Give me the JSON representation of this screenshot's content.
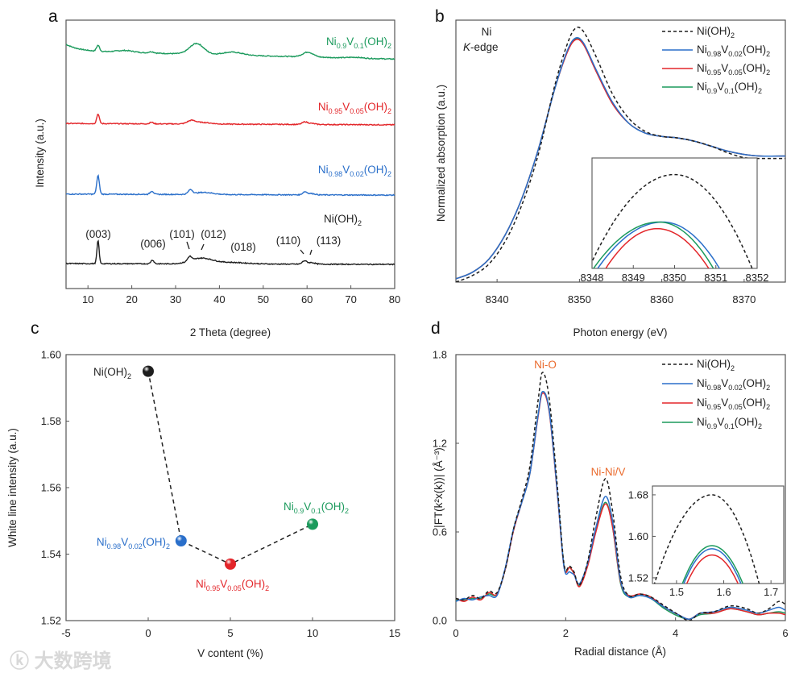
{
  "colors": {
    "black": "#1e1e1e",
    "blue": "#2a6fca",
    "red": "#e3262a",
    "green": "#1b9a5c",
    "annot": "#ea6a2c"
  },
  "watermark": "大数跨境",
  "chart_data": [
    {
      "panel": "a",
      "type": "line",
      "xlabel": "2 Theta (degree)",
      "ylabel": "Intensity (a.u.)",
      "xlim": [
        5,
        80
      ],
      "ylim": [
        0,
        100
      ],
      "xticks": [
        10,
        20,
        30,
        40,
        50,
        60,
        70,
        80
      ],
      "model": "baseline + gaussian peaks [center, height, width]",
      "series": [
        {
          "name": [
            "Ni",
            "0.9",
            "V",
            "0.1",
            "(OH)",
            "2"
          ],
          "color": "green",
          "baseline": [
            88.5,
            85.5
          ],
          "peaks": [
            [
              12.3,
              2.2,
              0.35
            ],
            [
              18.5,
              0.7,
              2
            ],
            [
              24.5,
              0.5,
              0.6
            ],
            [
              34.8,
              4.0,
              1.6
            ],
            [
              43,
              1.1,
              2.2
            ],
            [
              60.2,
              1.8,
              1.2
            ],
            [
              71,
              0.3,
              1.5
            ]
          ]
        },
        {
          "name": [
            "Ni",
            "0.95",
            "V",
            "0.05",
            "(OH)",
            "2"
          ],
          "color": "red",
          "baseline": [
            61.5,
            61.0
          ],
          "peaks": [
            [
              12.3,
              3.6,
              0.3
            ],
            [
              24.5,
              0.6,
              0.4
            ],
            [
              33.6,
              1.1,
              0.9
            ],
            [
              36,
              0.6,
              2
            ],
            [
              59.5,
              0.9,
              0.6
            ],
            [
              61,
              0.4,
              0.8
            ]
          ]
        },
        {
          "name": [
            "Ni",
            "0.98",
            "V",
            "0.02",
            "(OH)",
            "2"
          ],
          "color": "blue",
          "baseline": [
            35.2,
            34.8
          ],
          "peaks": [
            [
              12.3,
              6.9,
              0.3
            ],
            [
              24.6,
              1.2,
              0.4
            ],
            [
              33.4,
              1.6,
              0.5
            ],
            [
              36.5,
              0.8,
              2
            ],
            [
              59.5,
              1.1,
              0.5
            ],
            [
              61,
              0.5,
              0.8
            ]
          ]
        },
        {
          "name": [
            "Ni(OH)",
            "2"
          ],
          "color": "black",
          "baseline": [
            9.3,
            9.0
          ],
          "peaks": [
            [
              12.3,
              8.6,
              0.25
            ],
            [
              24.7,
              1.4,
              0.35
            ],
            [
              33.2,
              1.7,
              0.45
            ],
            [
              35.8,
              2.0,
              2.4
            ],
            [
              42,
              0.6,
              4
            ],
            [
              59.4,
              1.2,
              0.5
            ],
            [
              61,
              0.6,
              0.8
            ]
          ]
        }
      ],
      "annotations": [
        "(003)",
        "(006)",
        "(101)",
        "(012)",
        "(018)",
        "(110)",
        "(113)"
      ]
    },
    {
      "panel": "b",
      "type": "line",
      "xlabel": "Photon energy (eV)",
      "ylabel": "Normalized absorption (a.u.)",
      "xlim": [
        8335,
        8375
      ],
      "ylim": [
        0,
        1.6
      ],
      "xticks": [
        8340,
        8350,
        8360,
        8370
      ],
      "text": [
        "Ni",
        "K",
        "-edge"
      ],
      "x": [
        8335,
        8337,
        8339,
        8341,
        8343,
        8345,
        8347,
        8348.5,
        8349.5,
        8350.5,
        8352,
        8354,
        8356,
        8358,
        8360,
        8362,
        8364,
        8366,
        8368,
        8370,
        8372,
        8375
      ],
      "series": [
        {
          "name": [
            "Ni(OH)",
            "2"
          ],
          "color": "black",
          "dash": true,
          "values": [
            0.0,
            0.04,
            0.11,
            0.25,
            0.47,
            0.78,
            1.2,
            1.45,
            1.55,
            1.53,
            1.38,
            1.15,
            1.0,
            0.92,
            0.89,
            0.88,
            0.86,
            0.83,
            0.79,
            0.76,
            0.755,
            0.755
          ]
        },
        {
          "name": [
            "Ni",
            "0.98",
            "V",
            "0.02",
            "(OH)",
            "2"
          ],
          "color": "blue",
          "values": [
            0.02,
            0.06,
            0.14,
            0.29,
            0.51,
            0.81,
            1.18,
            1.41,
            1.49,
            1.46,
            1.3,
            1.1,
            0.97,
            0.91,
            0.89,
            0.88,
            0.86,
            0.83,
            0.8,
            0.78,
            0.77,
            0.77
          ]
        },
        {
          "name": [
            "Ni",
            "0.95",
            "V",
            "0.05",
            "(OH)",
            "2"
          ],
          "color": "red",
          "values": [
            0.02,
            0.06,
            0.14,
            0.29,
            0.51,
            0.81,
            1.18,
            1.4,
            1.48,
            1.45,
            1.29,
            1.09,
            0.97,
            0.91,
            0.89,
            0.88,
            0.86,
            0.83,
            0.8,
            0.78,
            0.77,
            0.77
          ]
        },
        {
          "name": [
            "Ni",
            "0.9",
            "V",
            "0.1",
            "(OH)",
            "2"
          ],
          "color": "green",
          "values": [
            0.02,
            0.06,
            0.14,
            0.29,
            0.51,
            0.81,
            1.18,
            1.405,
            1.485,
            1.455,
            1.295,
            1.095,
            0.97,
            0.91,
            0.89,
            0.88,
            0.86,
            0.83,
            0.8,
            0.78,
            0.77,
            0.77
          ]
        }
      ],
      "inset": {
        "xlim": [
          8348,
          8352
        ],
        "ylim": [
          0,
          1
        ],
        "xticks": [
          8348,
          8349,
          8350,
          8351,
          8352
        ],
        "model": "peak [x, y], x where curve meets inset bottom [left, right]",
        "series": [
          {
            "color": "black",
            "dash": true,
            "peak": [
              8350.0,
              0.85
            ],
            "ends": [
              8347.9,
              8351.9
            ]
          },
          {
            "color": "blue",
            "peak": [
              8349.72,
              0.42
            ],
            "ends": [
              8348.1,
              8351.12
            ]
          },
          {
            "color": "green",
            "peak": [
              8349.62,
              0.42
            ],
            "ends": [
              8348.0,
              8350.97
            ]
          },
          {
            "color": "red",
            "peak": [
              8349.58,
              0.36
            ],
            "ends": [
              8348.3,
              8350.86
            ]
          }
        ]
      }
    },
    {
      "panel": "c",
      "type": "scatter",
      "xlabel": "V content (%)",
      "ylabel": "White line intensity (a.u.)",
      "xlim": [
        -5,
        15
      ],
      "ylim": [
        1.52,
        1.6
      ],
      "xticks": [
        -5,
        0,
        5,
        10,
        15
      ],
      "yticks": [
        "1.52",
        "1.54",
        "1.56",
        "1.58",
        "1.60"
      ],
      "points": [
        {
          "x": 0,
          "y": 1.595,
          "color": "black",
          "name": [
            "Ni(OH)",
            "2"
          ]
        },
        {
          "x": 2,
          "y": 1.544,
          "color": "blue",
          "name": [
            "Ni",
            "0.98",
            "V",
            "0.02",
            "(OH)",
            "2"
          ]
        },
        {
          "x": 5,
          "y": 1.537,
          "color": "red",
          "name": [
            "Ni",
            "0.95",
            "V",
            "0.05",
            "(OH)",
            "2"
          ]
        },
        {
          "x": 10,
          "y": 1.549,
          "color": "green",
          "name": [
            "Ni",
            "0.9",
            "V",
            "0.1",
            "(OH)",
            "2"
          ]
        }
      ]
    },
    {
      "panel": "d",
      "type": "line",
      "xlabel": "Radial distance (Å)",
      "ylabel": "|FT(k²x(k))| (Å⁻³)",
      "xlim": [
        0,
        6
      ],
      "ylim": [
        0,
        1.8
      ],
      "xticks": [
        0,
        2,
        4,
        6
      ],
      "yticks": [
        "0.0",
        "0.6",
        "1.2",
        "1.8"
      ],
      "annotations": [
        "Ni-O",
        "Ni-Ni/V"
      ],
      "x": [
        0,
        0.15,
        0.3,
        0.45,
        0.6,
        0.75,
        0.9,
        1.05,
        1.2,
        1.35,
        1.5,
        1.58,
        1.7,
        1.85,
        1.97,
        2.07,
        2.15,
        2.25,
        2.4,
        2.55,
        2.72,
        2.85,
        3.0,
        3.15,
        3.35,
        3.55,
        3.8,
        4.05,
        4.25,
        4.45,
        4.7,
        5.0,
        5.3,
        5.5,
        5.7,
        5.88,
        6.0
      ],
      "series": [
        {
          "name": [
            "Ni(OH)",
            "2"
          ],
          "color": "black",
          "dash": true,
          "values": [
            0.15,
            0.14,
            0.17,
            0.15,
            0.2,
            0.19,
            0.35,
            0.62,
            0.82,
            1.05,
            1.5,
            1.68,
            1.5,
            0.9,
            0.38,
            0.37,
            0.33,
            0.24,
            0.4,
            0.7,
            0.96,
            0.75,
            0.3,
            0.17,
            0.18,
            0.16,
            0.1,
            0.04,
            0.0,
            0.05,
            0.06,
            0.1,
            0.08,
            0.05,
            0.08,
            0.13,
            0.11
          ]
        },
        {
          "name": [
            "Ni",
            "0.98",
            "V",
            "0.02",
            "(OH)",
            "2"
          ],
          "color": "blue",
          "values": [
            0.13,
            0.15,
            0.14,
            0.16,
            0.17,
            0.17,
            0.36,
            0.62,
            0.8,
            1.0,
            1.4,
            1.55,
            1.42,
            0.86,
            0.36,
            0.33,
            0.31,
            0.25,
            0.39,
            0.63,
            0.84,
            0.68,
            0.27,
            0.16,
            0.17,
            0.15,
            0.09,
            0.04,
            0.01,
            0.05,
            0.06,
            0.09,
            0.07,
            0.05,
            0.07,
            0.09,
            0.07
          ]
        },
        {
          "name": [
            "Ni",
            "0.95",
            "V",
            "0.05",
            "(OH)",
            "2"
          ],
          "color": "red",
          "values": [
            0.15,
            0.13,
            0.16,
            0.14,
            0.19,
            0.18,
            0.35,
            0.61,
            0.8,
            1.0,
            1.39,
            1.54,
            1.41,
            0.85,
            0.36,
            0.36,
            0.32,
            0.23,
            0.37,
            0.6,
            0.79,
            0.64,
            0.26,
            0.17,
            0.18,
            0.16,
            0.09,
            0.04,
            0.01,
            0.05,
            0.05,
            0.08,
            0.06,
            0.04,
            0.05,
            0.05,
            0.04
          ]
        },
        {
          "name": [
            "Ni",
            "0.9",
            "V",
            "0.1",
            "(OH)",
            "2"
          ],
          "color": "green",
          "values": [
            0.14,
            0.14,
            0.15,
            0.15,
            0.18,
            0.18,
            0.35,
            0.62,
            0.8,
            1.0,
            1.4,
            1.55,
            1.42,
            0.86,
            0.37,
            0.36,
            0.32,
            0.24,
            0.38,
            0.61,
            0.8,
            0.64,
            0.25,
            0.16,
            0.17,
            0.15,
            0.08,
            0.03,
            0.01,
            0.04,
            0.05,
            0.08,
            0.06,
            0.04,
            0.05,
            0.06,
            0.05
          ]
        }
      ],
      "inset": {
        "xlim": [
          1.449,
          1.727
        ],
        "ylim": [
          1.509,
          1.697
        ],
        "xticks": [
          "1.5",
          "1.6",
          "1.7"
        ],
        "yticks": [
          "1.52",
          "1.60",
          "1.68"
        ],
        "model": "peak [x, y], x where curve meets inset bottom [left, right]",
        "series": [
          {
            "color": "black",
            "dash": true,
            "peak": [
              1.575,
              1.68
            ],
            "ends": [
              1.452,
              1.676
            ]
          },
          {
            "color": "green",
            "peak": [
              1.575,
              1.582
            ],
            "ends": [
              1.511,
              1.642
            ]
          },
          {
            "color": "blue",
            "peak": [
              1.575,
              1.576
            ],
            "ends": [
              1.514,
              1.638
            ]
          },
          {
            "color": "red",
            "peak": [
              1.575,
              1.564
            ],
            "ends": [
              1.52,
              1.632
            ]
          }
        ]
      }
    }
  ]
}
